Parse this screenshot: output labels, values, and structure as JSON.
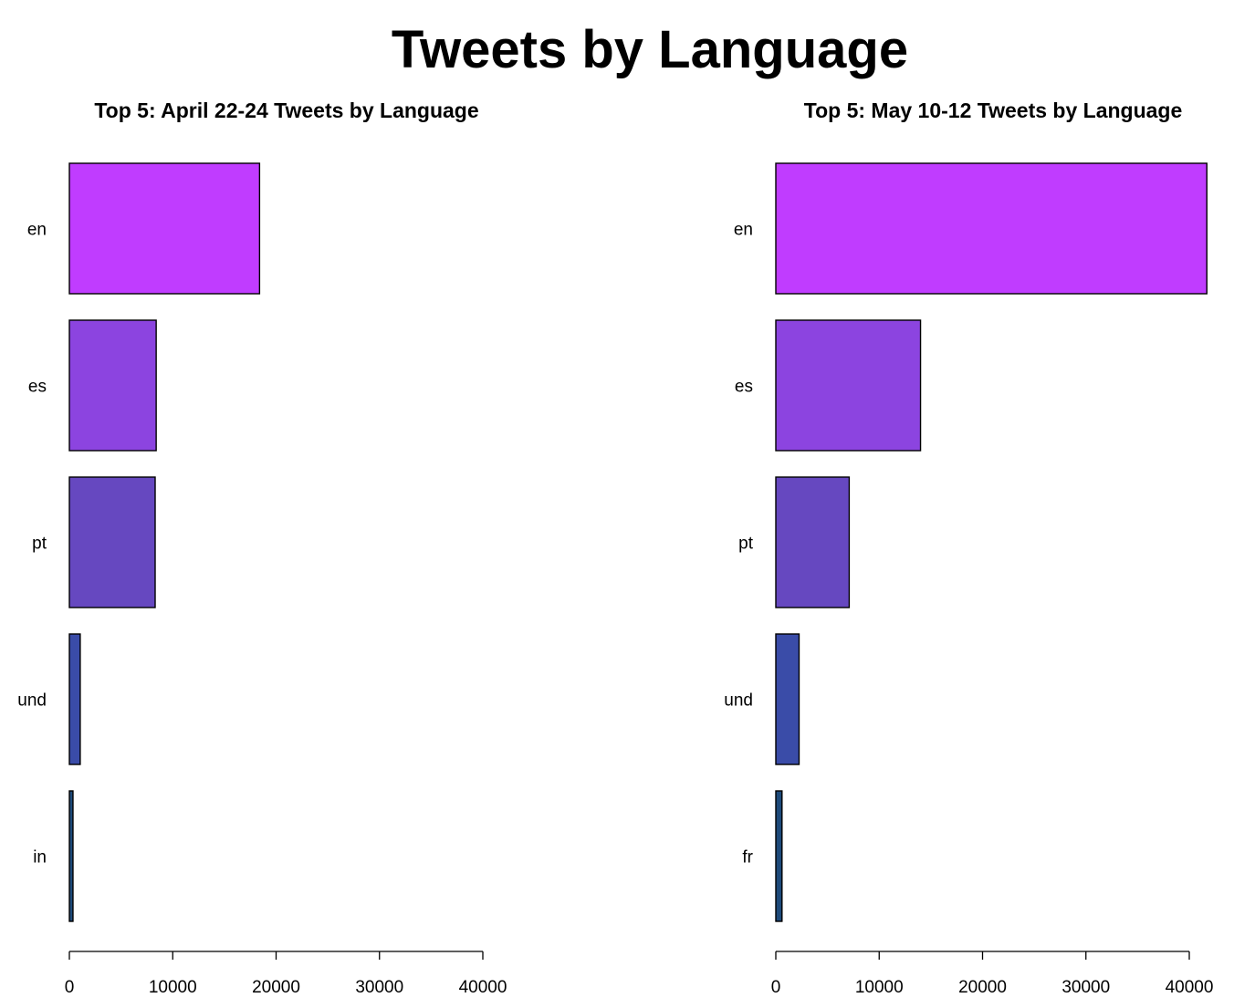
{
  "title": "Tweets by Language",
  "colors": [
    "#c03cff",
    "#8c44e0",
    "#6648c0",
    "#3a4ca8",
    "#1e4a7a"
  ],
  "chart_data": [
    {
      "type": "bar",
      "orientation": "horizontal",
      "title": "Top 5: April 22-24 Tweets by Language",
      "categories": [
        "en",
        "es",
        "pt",
        "und",
        "in"
      ],
      "values": [
        18400,
        8400,
        8300,
        1050,
        350
      ],
      "xlabel": "",
      "ylabel": "",
      "xlim": [
        0,
        40000
      ],
      "ticks": [
        "0",
        "10000",
        "20000",
        "30000",
        "40000"
      ],
      "grid": false
    },
    {
      "type": "bar",
      "orientation": "horizontal",
      "title": "Top 5: May 10-12 Tweets by Language",
      "categories": [
        "en",
        "es",
        "pt",
        "und",
        "fr"
      ],
      "values": [
        41700,
        14000,
        7100,
        2250,
        600
      ],
      "xlabel": "",
      "ylabel": "",
      "xlim": [
        0,
        40000
      ],
      "ticks": [
        "0",
        "10000",
        "20000",
        "30000",
        "40000"
      ],
      "grid": false
    }
  ]
}
